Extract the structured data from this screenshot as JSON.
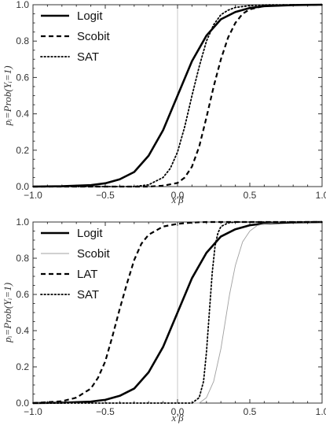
{
  "chart_data": [
    {
      "type": "line",
      "xlabel": "x′β",
      "ylabel": "pᵢ=Prob(Yᵢ=1)",
      "xlim": [
        -1.0,
        1.0
      ],
      "ylim": [
        0.0,
        1.0
      ],
      "xticks": [
        -1.0,
        -0.5,
        0.0,
        0.5,
        1.0
      ],
      "yticks": [
        0.0,
        0.2,
        0.4,
        0.6,
        0.8,
        1.0
      ],
      "xtick_labels": [
        "−1.0",
        "−0.5",
        "0.0",
        "0.5",
        "1.0"
      ],
      "ytick_labels": [
        "0.0",
        "0.2",
        "0.4",
        "0.6",
        "0.8",
        "1.0"
      ],
      "vertical_reference_line": 0.0,
      "legend_position": "top-left",
      "series": [
        {
          "name": "Logit",
          "style": "solid-thick",
          "color": "#000000",
          "x": [
            -1.0,
            -0.8,
            -0.6,
            -0.5,
            -0.4,
            -0.3,
            -0.2,
            -0.1,
            0.0,
            0.1,
            0.2,
            0.3,
            0.4,
            0.5,
            0.6,
            0.8,
            1.0
          ],
          "y": [
            0.0,
            0.002,
            0.008,
            0.018,
            0.04,
            0.08,
            0.17,
            0.31,
            0.5,
            0.69,
            0.83,
            0.92,
            0.96,
            0.982,
            0.992,
            0.998,
            1.0
          ]
        },
        {
          "name": "Scobit",
          "style": "dashed",
          "color": "#000000",
          "x": [
            -1.0,
            -0.2,
            -0.1,
            0.0,
            0.05,
            0.1,
            0.15,
            0.2,
            0.25,
            0.3,
            0.35,
            0.4,
            0.45,
            0.5,
            0.6,
            0.7,
            1.0
          ],
          "y": [
            0.0,
            0.0,
            0.005,
            0.02,
            0.05,
            0.11,
            0.22,
            0.38,
            0.55,
            0.7,
            0.82,
            0.9,
            0.95,
            0.975,
            0.993,
            0.998,
            1.0
          ]
        },
        {
          "name": "SAT",
          "style": "dotted",
          "color": "#000000",
          "x": [
            -1.0,
            -0.3,
            -0.2,
            -0.1,
            -0.05,
            0.0,
            0.05,
            0.1,
            0.15,
            0.2,
            0.25,
            0.3,
            0.35,
            0.4,
            0.5,
            0.6,
            1.0
          ],
          "y": [
            0.0,
            0.0,
            0.01,
            0.05,
            0.1,
            0.19,
            0.33,
            0.5,
            0.66,
            0.8,
            0.89,
            0.945,
            0.97,
            0.985,
            0.995,
            0.999,
            1.0
          ]
        }
      ]
    },
    {
      "type": "line",
      "xlabel": "x′β",
      "ylabel": "pᵢ=Prob(Yᵢ=1)",
      "xlim": [
        -1.0,
        1.0
      ],
      "ylim": [
        0.0,
        1.0
      ],
      "xticks": [
        -1.0,
        -0.5,
        0.0,
        0.5,
        1.0
      ],
      "yticks": [
        0.0,
        0.2,
        0.4,
        0.6,
        0.8,
        1.0
      ],
      "xtick_labels": [
        "−1.0",
        "−0.5",
        "0.0",
        "0.5",
        "1.0"
      ],
      "ytick_labels": [
        "0.0",
        "0.2",
        "0.4",
        "0.6",
        "0.8",
        "1.0"
      ],
      "vertical_reference_line": 0.0,
      "legend_position": "top-left",
      "series": [
        {
          "name": "Logit",
          "style": "solid-thick",
          "color": "#000000",
          "x": [
            -1.0,
            -0.8,
            -0.6,
            -0.5,
            -0.4,
            -0.3,
            -0.2,
            -0.1,
            0.0,
            0.1,
            0.2,
            0.3,
            0.4,
            0.5,
            0.6,
            0.8,
            1.0
          ],
          "y": [
            0.0,
            0.002,
            0.008,
            0.018,
            0.04,
            0.08,
            0.17,
            0.31,
            0.5,
            0.69,
            0.83,
            0.92,
            0.96,
            0.982,
            0.992,
            0.998,
            1.0
          ]
        },
        {
          "name": "Scobit",
          "style": "solid-thin",
          "color": "#a0a0a0",
          "x": [
            -1.0,
            0.15,
            0.2,
            0.25,
            0.3,
            0.33,
            0.36,
            0.4,
            0.45,
            0.5,
            0.55,
            0.6,
            0.7,
            0.8,
            1.0
          ],
          "y": [
            0.0,
            0.0,
            0.03,
            0.12,
            0.3,
            0.45,
            0.6,
            0.76,
            0.89,
            0.95,
            0.98,
            0.99,
            0.998,
            1.0,
            1.0
          ],
          "legend_label": "Scobit"
        },
        {
          "name": "LAT",
          "style": "dashed",
          "color": "#000000",
          "x": [
            -1.0,
            -0.8,
            -0.7,
            -0.6,
            -0.55,
            -0.5,
            -0.45,
            -0.4,
            -0.35,
            -0.3,
            -0.25,
            -0.2,
            -0.1,
            0.0,
            0.1,
            0.2,
            1.0
          ],
          "y": [
            0.0,
            0.01,
            0.03,
            0.08,
            0.14,
            0.23,
            0.37,
            0.52,
            0.66,
            0.79,
            0.88,
            0.93,
            0.975,
            0.99,
            0.997,
            1.0,
            1.0
          ]
        },
        {
          "name": "SAT",
          "style": "dotted",
          "color": "#000000",
          "x": [
            -1.0,
            0.1,
            0.15,
            0.18,
            0.2,
            0.22,
            0.24,
            0.26,
            0.28,
            0.3,
            0.35,
            0.4,
            1.0
          ],
          "y": [
            0.0,
            0.0,
            0.03,
            0.12,
            0.28,
            0.5,
            0.72,
            0.87,
            0.94,
            0.975,
            0.995,
            1.0,
            1.0
          ]
        }
      ]
    }
  ]
}
